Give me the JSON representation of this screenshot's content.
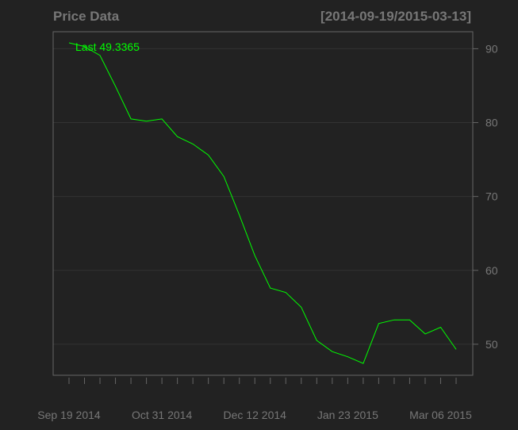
{
  "chart_data": {
    "type": "line",
    "title": "Price Data",
    "date_range": "[2014-09-19/2015-03-13]",
    "last_label": "Last 49.3365",
    "xlabel": "",
    "ylabel": "",
    "x": [
      "2014-09-19",
      "2014-09-26",
      "2014-10-03",
      "2014-10-10",
      "2014-10-17",
      "2014-10-24",
      "2014-10-31",
      "2014-11-07",
      "2014-11-14",
      "2014-11-21",
      "2014-11-28",
      "2014-12-05",
      "2014-12-12",
      "2014-12-19",
      "2014-12-26",
      "2015-01-02",
      "2015-01-09",
      "2015-01-16",
      "2015-01-23",
      "2015-01-30",
      "2015-02-06",
      "2015-02-13",
      "2015-02-20",
      "2015-02-27",
      "2015-03-06",
      "2015-03-13"
    ],
    "series": [
      {
        "values": [
          90.8,
          90.3,
          89.1,
          84.9,
          80.5,
          80.2,
          80.5,
          78.1,
          77.1,
          75.6,
          72.7,
          67.5,
          62.0,
          57.6,
          57.0,
          55.0,
          50.5,
          49.0,
          48.3,
          47.4,
          52.8,
          53.3,
          53.3,
          51.4,
          52.3,
          49.3
        ]
      }
    ],
    "x_tick_labels": [
      "Sep 19 2014",
      "Oct 31 2014",
      "Dec 12 2014",
      "Jan 23 2015",
      "Mar 06 2015"
    ],
    "x_tick_label_index": [
      0,
      6,
      12,
      18,
      24
    ],
    "y_ticks": [
      50,
      60,
      70,
      80,
      90
    ],
    "ylim": [
      45.8,
      92.3
    ],
    "grid": true,
    "y_axis_side": "right",
    "colors": {
      "background": "#222222",
      "line": "#00ff00",
      "text": "#777777",
      "frame": "#666666",
      "grid": "#333333"
    }
  }
}
